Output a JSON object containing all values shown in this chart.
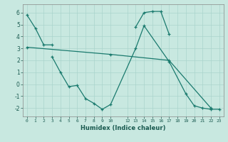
{
  "xlabel": "Humidex (Indice chaleur)",
  "bg_color": "#c8e8e0",
  "grid_color": "#b0d8d0",
  "line_color": "#1a7a6e",
  "xlim": [
    -0.5,
    23.5
  ],
  "ylim": [
    -2.7,
    6.7
  ],
  "xtick_positions": [
    0,
    1,
    2,
    3,
    4,
    5,
    6,
    7,
    8,
    9,
    10,
    12,
    13,
    14,
    15,
    16,
    17,
    18,
    19,
    20,
    21,
    22,
    23
  ],
  "xtick_labels": [
    "0",
    "1",
    "2",
    "3",
    "4",
    "5",
    "6",
    "7",
    "8",
    "9",
    "10",
    "12",
    "13",
    "14",
    "15",
    "16",
    "17",
    "18",
    "19",
    "20",
    "21",
    "22",
    "23"
  ],
  "yticks": [
    -2,
    -1,
    0,
    1,
    2,
    3,
    4,
    5,
    6
  ],
  "lines": [
    {
      "x": [
        0,
        1,
        2,
        3
      ],
      "y": [
        5.8,
        4.7,
        3.3,
        3.3
      ],
      "marker": "+"
    },
    {
      "x": [
        3,
        4,
        5,
        6,
        7,
        8,
        9,
        10,
        13,
        14,
        17,
        19,
        20,
        21,
        22,
        23
      ],
      "y": [
        2.3,
        1.0,
        -0.2,
        -0.1,
        -1.2,
        -1.6,
        -2.1,
        -1.7,
        3.0,
        4.9,
        1.9,
        -0.8,
        -1.8,
        -2.0,
        -2.1,
        -2.1
      ],
      "marker": "+"
    },
    {
      "x": [
        0,
        10,
        17,
        22
      ],
      "y": [
        3.1,
        2.5,
        2.0,
        -2.0
      ],
      "marker": "+"
    },
    {
      "x": [
        13,
        14,
        15,
        16,
        17
      ],
      "y": [
        4.8,
        6.0,
        6.1,
        6.1,
        4.2
      ],
      "marker": "+"
    }
  ]
}
